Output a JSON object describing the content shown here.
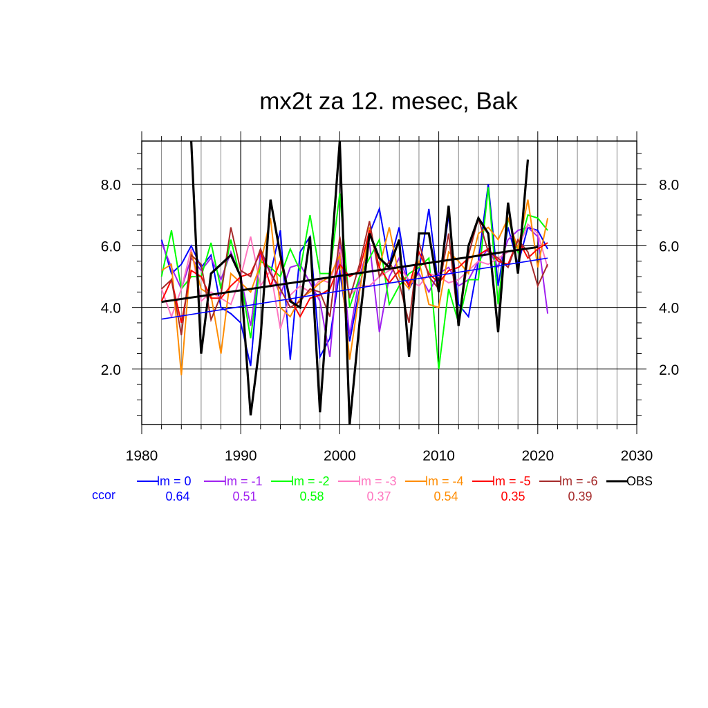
{
  "chart_data": {
    "type": "line",
    "title": "mx2t za 12. mesec, Bak",
    "xlabel": "",
    "ylabel": "",
    "xlim": [
      1980,
      2030
    ],
    "ylim": [
      0.2,
      9.4
    ],
    "x_ticks": [
      1980,
      1990,
      2000,
      2010,
      2020,
      2030
    ],
    "x_tick_labels": [
      "1980",
      "1990",
      "2000",
      "2010",
      "2020",
      "2030"
    ],
    "y_ticks": [
      2,
      4,
      6,
      8
    ],
    "y_tick_labels": [
      "2.0",
      "4.0",
      "6.0",
      "8.0"
    ],
    "grid": true,
    "legend_position": "bottom",
    "ccor_label": "ccor",
    "series": [
      {
        "name": "lm = 0",
        "color": "#0000ff",
        "ccor": "0.64",
        "x": [
          1982,
          1983,
          1984,
          1985,
          1986,
          1987,
          1988,
          1989,
          1990,
          1991,
          1992,
          1993,
          1994,
          1995,
          1996,
          1997,
          1998,
          1999,
          2000,
          2001,
          2002,
          2003,
          2004,
          2005,
          2006,
          2007,
          2008,
          2009,
          2010,
          2011,
          2012,
          2013,
          2014,
          2015,
          2016,
          2017,
          2018,
          2019,
          2020,
          2021
        ],
        "y": [
          6.2,
          5.1,
          5.4,
          6.0,
          5.3,
          5.7,
          4.0,
          3.8,
          3.5,
          2.1,
          5.8,
          5.1,
          6.5,
          2.3,
          5.8,
          6.3,
          2.4,
          3.0,
          5.2,
          2.9,
          4.6,
          6.4,
          7.2,
          5.4,
          6.6,
          4.6,
          5.2,
          7.2,
          4.6,
          7.0,
          4.1,
          3.7,
          5.5,
          8.0,
          4.7,
          6.6,
          5.4,
          6.6,
          6.5,
          5.9
        ]
      },
      {
        "name": "lm = -1",
        "color": "#a020f0",
        "ccor": "0.51",
        "x": [
          1982,
          1983,
          1984,
          1985,
          1986,
          1987,
          1988,
          1989,
          1990,
          1991,
          1992,
          1993,
          1994,
          1995,
          1996,
          1997,
          1998,
          1999,
          2000,
          2001,
          2002,
          2003,
          2004,
          2005,
          2006,
          2007,
          2008,
          2009,
          2010,
          2011,
          2012,
          2013,
          2014,
          2015,
          2016,
          2017,
          2018,
          2019,
          2020,
          2021
        ],
        "y": [
          6.1,
          5.3,
          4.6,
          5.6,
          5.2,
          5.6,
          4.9,
          5.8,
          5.0,
          3.4,
          5.7,
          5.2,
          4.4,
          5.3,
          5.4,
          4.8,
          4.2,
          2.4,
          6.1,
          3.1,
          5.0,
          6.1,
          3.2,
          5.0,
          5.6,
          4.8,
          5.1,
          4.5,
          5.1,
          5.3,
          4.7,
          4.9,
          5.5,
          5.9,
          5.3,
          6.2,
          6.5,
          6.6,
          6.3,
          3.8
        ]
      },
      {
        "name": "lm = -2",
        "color": "#00ff00",
        "ccor": "0.58",
        "x": [
          1982,
          1983,
          1984,
          1985,
          1986,
          1987,
          1988,
          1989,
          1990,
          1991,
          1992,
          1993,
          1994,
          1995,
          1996,
          1997,
          1998,
          1999,
          2000,
          2001,
          2002,
          2003,
          2004,
          2005,
          2006,
          2007,
          2008,
          2009,
          2010,
          2011,
          2012,
          2013,
          2014,
          2015,
          2016,
          2017,
          2018,
          2019,
          2020,
          2021
        ],
        "y": [
          5.0,
          6.5,
          4.6,
          5.0,
          5.0,
          6.1,
          4.6,
          6.2,
          4.9,
          3.0,
          5.5,
          5.3,
          5.0,
          5.9,
          5.2,
          7.0,
          5.1,
          5.1,
          7.7,
          4.0,
          5.0,
          5.6,
          6.2,
          4.1,
          4.7,
          5.1,
          5.3,
          5.6,
          2.0,
          4.6,
          3.5,
          4.9,
          4.9,
          7.9,
          4.1,
          6.9,
          5.8,
          7.0,
          6.9,
          6.5
        ]
      },
      {
        "name": "lm = -3",
        "color": "#ff77c0",
        "ccor": "0.37",
        "x": [
          1982,
          1983,
          1984,
          1985,
          1986,
          1987,
          1988,
          1989,
          1990,
          1991,
          1992,
          1993,
          1994,
          1995,
          1996,
          1997,
          1998,
          1999,
          2000,
          2001,
          2002,
          2003,
          2004,
          2005,
          2006,
          2007,
          2008,
          2009,
          2010,
          2011,
          2012,
          2013,
          2014,
          2015,
          2016,
          2017,
          2018,
          2019,
          2020,
          2021
        ],
        "y": [
          4.6,
          3.7,
          4.6,
          5.9,
          4.2,
          4.5,
          4.3,
          4.1,
          5.0,
          6.3,
          4.7,
          5.2,
          3.3,
          4.4,
          4.7,
          4.5,
          4.9,
          4.8,
          5.9,
          4.4,
          4.7,
          4.7,
          5.0,
          5.2,
          5.3,
          4.9,
          4.7,
          5.1,
          5.0,
          4.8,
          4.9,
          5.2,
          5.5,
          5.4,
          5.6,
          5.8,
          5.9,
          6.7,
          6.4,
          5.3
        ]
      },
      {
        "name": "lm = -4",
        "color": "#ff8c00",
        "ccor": "0.54",
        "x": [
          1982,
          1983,
          1984,
          1985,
          1986,
          1987,
          1988,
          1989,
          1990,
          1991,
          1992,
          1993,
          1994,
          1995,
          1996,
          1997,
          1998,
          1999,
          2000,
          2001,
          2002,
          2003,
          2004,
          2005,
          2006,
          2007,
          2008,
          2009,
          2010,
          2011,
          2012,
          2013,
          2014,
          2015,
          2016,
          2017,
          2018,
          2019,
          2020,
          2021
        ],
        "y": [
          5.2,
          5.4,
          1.8,
          5.8,
          4.6,
          4.4,
          2.5,
          5.1,
          4.8,
          4.5,
          5.4,
          6.9,
          4.0,
          3.7,
          4.3,
          4.5,
          4.8,
          5.0,
          5.7,
          2.3,
          4.5,
          6.6,
          5.3,
          6.6,
          5.0,
          4.6,
          5.5,
          4.1,
          4.0,
          5.8,
          5.5,
          5.1,
          6.4,
          6.6,
          6.2,
          6.9,
          5.9,
          7.5,
          5.3,
          6.9
        ]
      },
      {
        "name": "lm = -5",
        "color": "#ff0000",
        "ccor": "0.35",
        "x": [
          1982,
          1983,
          1984,
          1985,
          1986,
          1987,
          1988,
          1989,
          1990,
          1991,
          1992,
          1993,
          1994,
          1995,
          1996,
          1997,
          1998,
          1999,
          2000,
          2001,
          2002,
          2003,
          2004,
          2005,
          2006,
          2007,
          2008,
          2009,
          2010,
          2011,
          2012,
          2013,
          2014,
          2015,
          2016,
          2017,
          2018,
          2019,
          2020,
          2021
        ],
        "y": [
          4.2,
          4.9,
          3.5,
          5.2,
          5.0,
          4.3,
          4.3,
          4.7,
          5.0,
          5.1,
          5.8,
          4.7,
          5.5,
          4.3,
          3.7,
          4.3,
          4.4,
          4.6,
          5.4,
          5.0,
          5.2,
          6.5,
          5.3,
          4.8,
          5.2,
          4.7,
          5.8,
          5.1,
          4.8,
          5.2,
          5.3,
          5.6,
          5.7,
          5.9,
          5.5,
          5.4,
          6.2,
          5.6,
          5.9,
          6.1
        ]
      },
      {
        "name": "lm = -6",
        "color": "#a52a2a",
        "ccor": "0.39",
        "x": [
          1982,
          1983,
          1984,
          1985,
          1986,
          1987,
          1988,
          1989,
          1990,
          1991,
          1992,
          1993,
          1994,
          1995,
          1996,
          1997,
          1998,
          1999,
          2000,
          2001,
          2002,
          2003,
          2004,
          2005,
          2006,
          2007,
          2008,
          2009,
          2010,
          2011,
          2012,
          2013,
          2014,
          2015,
          2016,
          2017,
          2018,
          2019,
          2020,
          2021
        ],
        "y": [
          4.6,
          4.9,
          3.1,
          5.7,
          5.4,
          3.6,
          4.4,
          6.6,
          5.2,
          5.0,
          5.9,
          5.1,
          4.6,
          4.0,
          4.2,
          4.6,
          4.5,
          3.7,
          6.3,
          4.3,
          5.4,
          6.8,
          5.0,
          5.5,
          4.8,
          3.5,
          6.1,
          5.0,
          4.6,
          6.4,
          3.4,
          5.7,
          6.9,
          5.8,
          5.6,
          5.3,
          6.2,
          5.8,
          4.7,
          5.4
        ]
      },
      {
        "name": "OBS",
        "color": "#000000",
        "ccor": "",
        "x": [
          1985,
          1986,
          1987,
          1988,
          1989,
          1990,
          1991,
          1992,
          1993,
          1994,
          1995,
          1996,
          1997,
          1998,
          1999,
          2000,
          2001,
          2002,
          2003,
          2004,
          2005,
          2006,
          2007,
          2008,
          2009,
          2010,
          2011,
          2012,
          2013,
          2014,
          2015,
          2016,
          2017,
          2018,
          2019
        ],
        "y": [
          9.4,
          2.5,
          5.1,
          5.4,
          5.7,
          5.0,
          0.5,
          3.0,
          7.5,
          5.7,
          4.2,
          4.0,
          6.3,
          0.6,
          5.1,
          9.4,
          0.2,
          3.5,
          6.4,
          5.6,
          5.3,
          6.2,
          2.4,
          6.4,
          6.4,
          4.5,
          7.3,
          3.4,
          6.0,
          6.9,
          6.4,
          3.2,
          7.4,
          5.1,
          8.8
        ]
      }
    ],
    "trend_lines": [
      {
        "series": "lm = 0",
        "color": "#0000ff",
        "x": [
          1982,
          2021
        ],
        "y": [
          3.62,
          5.6
        ]
      },
      {
        "series": "OBS",
        "color": "#000000",
        "x": [
          1982,
          2020
        ],
        "y": [
          4.18,
          5.96
        ]
      }
    ]
  }
}
